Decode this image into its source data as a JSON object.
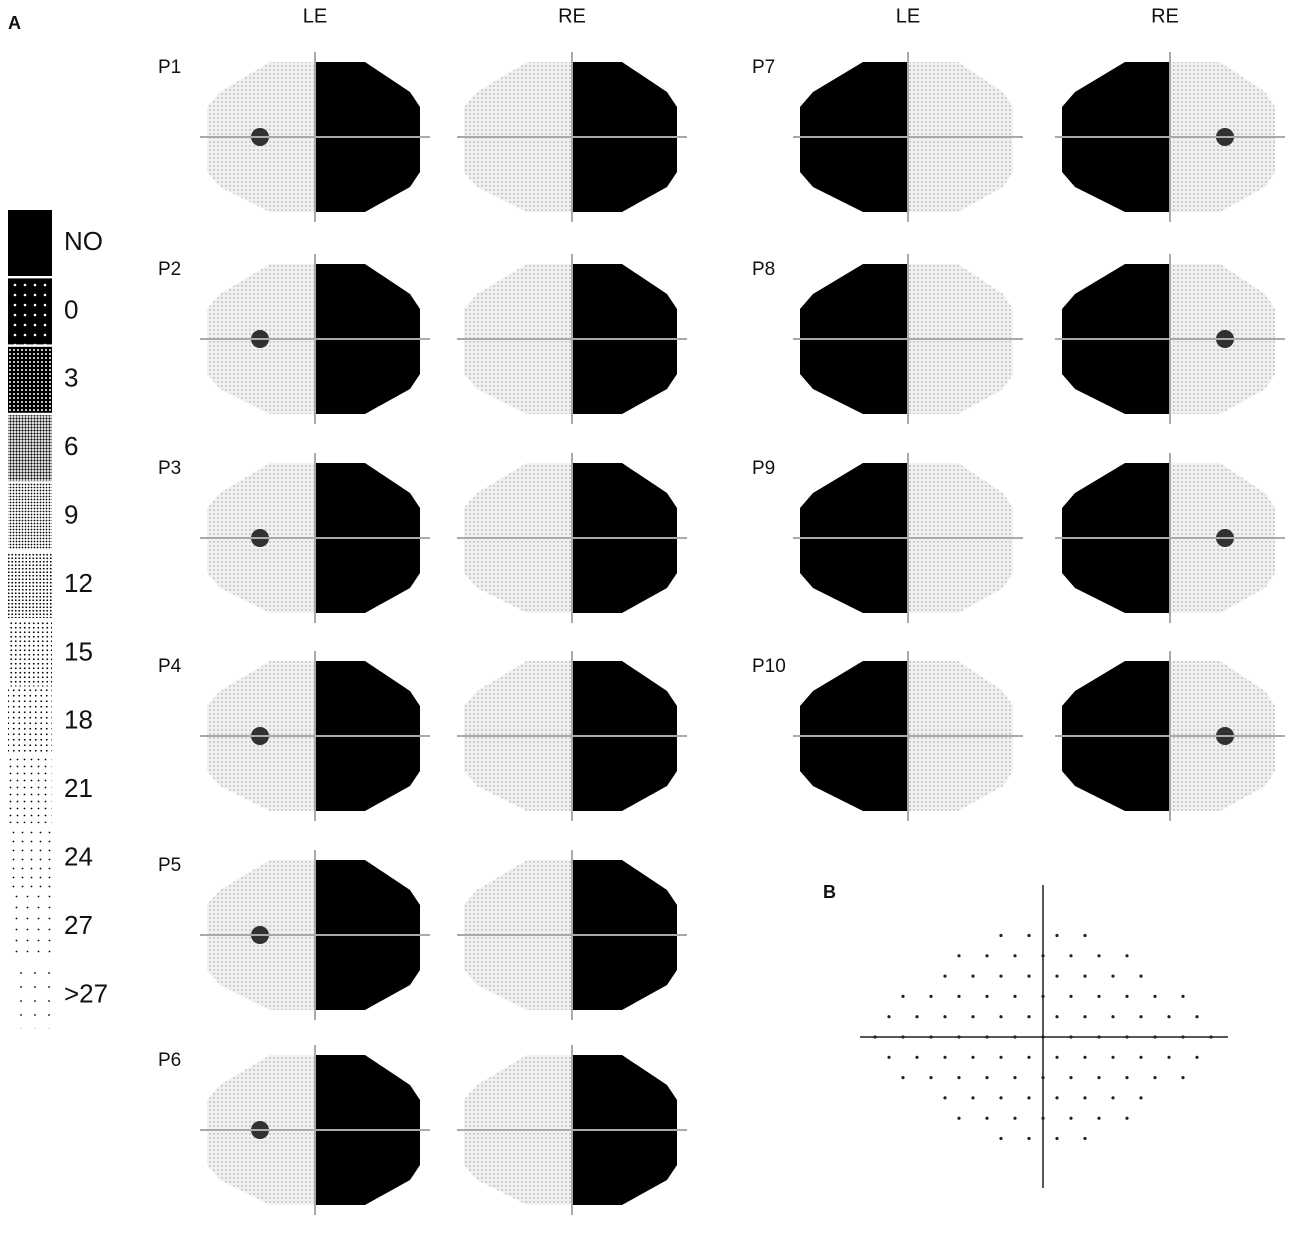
{
  "panel_a": {
    "label": "A",
    "column_headers": [
      "LE",
      "RE",
      "LE",
      "RE"
    ],
    "patients": [
      "P1",
      "P2",
      "P3",
      "P4",
      "P5",
      "P6",
      "P7",
      "P8",
      "P9",
      "P10"
    ],
    "legend": {
      "levels": [
        "NO",
        "0",
        "3",
        "6",
        "9",
        "12",
        "15",
        "18",
        "21",
        "24",
        "27",
        ">27"
      ]
    }
  },
  "panel_b": {
    "label": "B"
  }
}
